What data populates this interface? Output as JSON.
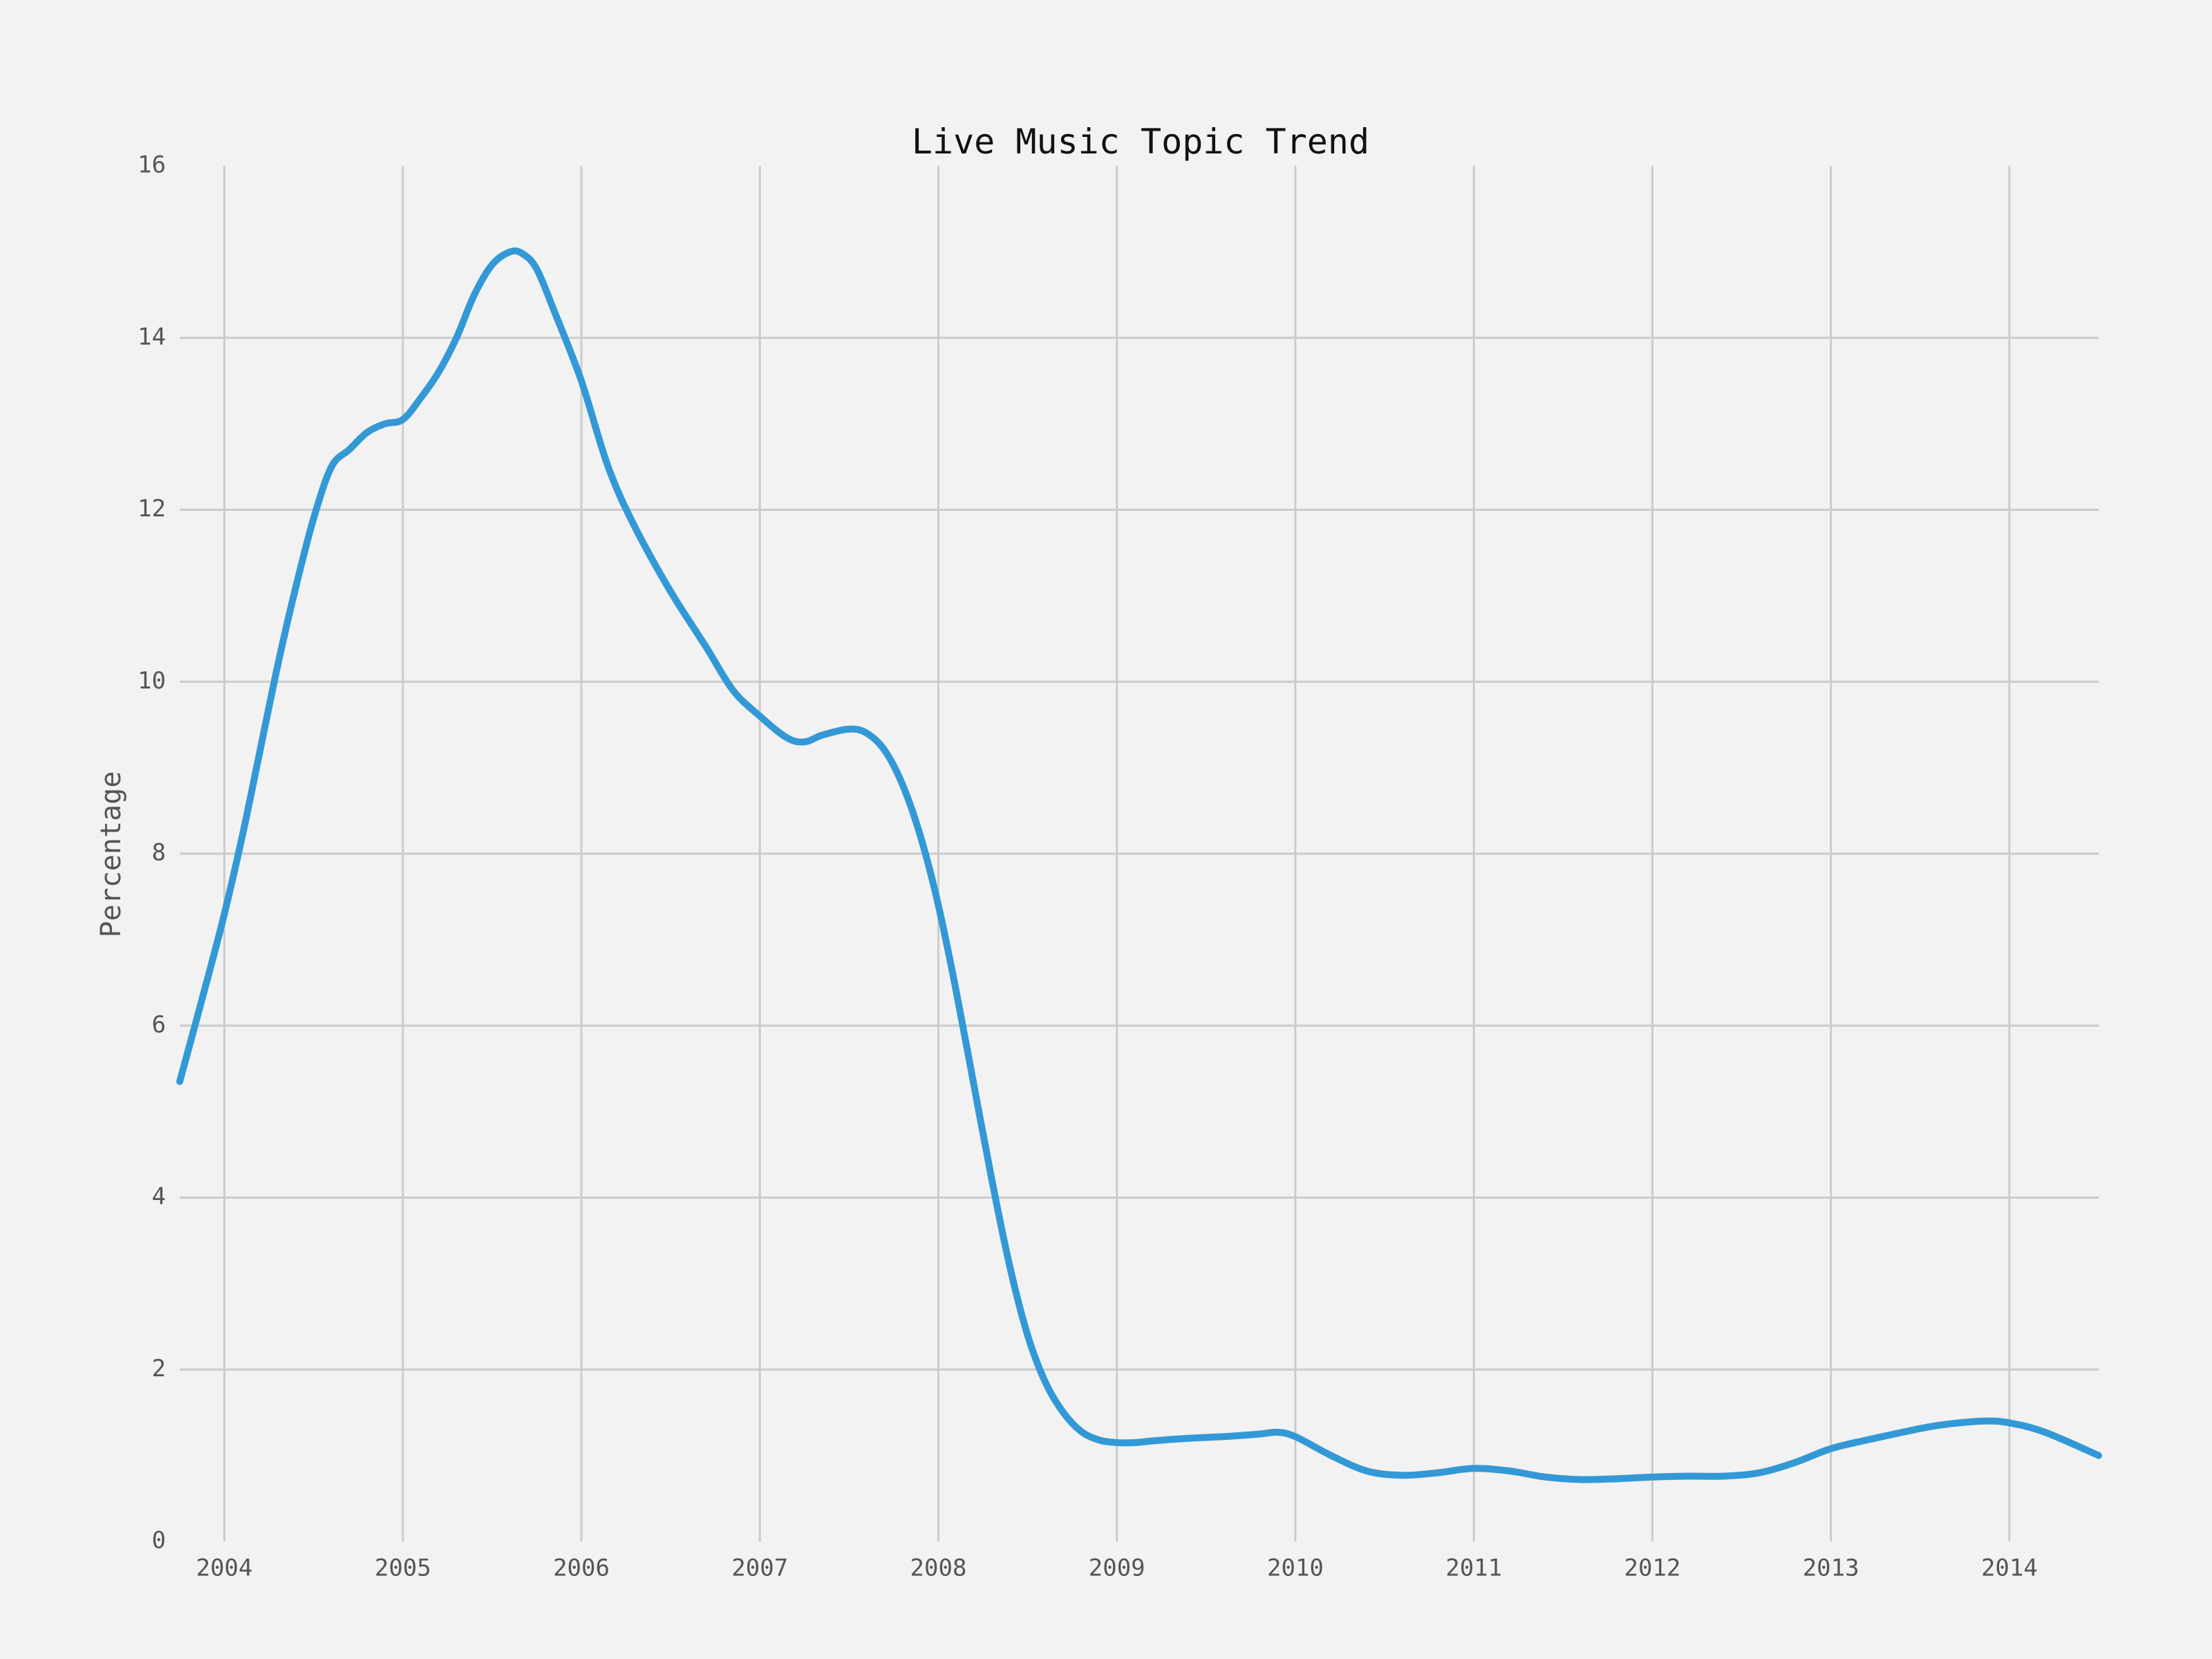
{
  "chart_data": {
    "type": "line",
    "title": "Live Music Topic Trend",
    "xlabel": "",
    "ylabel": "Percentage",
    "xlim": [
      2003.75,
      2014.5
    ],
    "ylim": [
      0,
      16
    ],
    "x_ticks": [
      "2004",
      "2005",
      "2006",
      "2007",
      "2008",
      "2009",
      "2010",
      "2011",
      "2012",
      "2013",
      "2014"
    ],
    "y_ticks": [
      "0",
      "2",
      "4",
      "6",
      "8",
      "10",
      "12",
      "14",
      "16"
    ],
    "grid": true,
    "legend": "none",
    "colors": {
      "line": "#3399d6",
      "grid": "#cbcbcb",
      "background": "#f2f2f2"
    },
    "series": [
      {
        "x": [
          2003.75,
          2003.9,
          2004.0,
          2004.1,
          2004.2,
          2004.3,
          2004.4,
          2004.5,
          2004.6,
          2004.7,
          2004.8,
          2004.9,
          2005.0,
          2005.1,
          2005.2,
          2005.3,
          2005.4,
          2005.5,
          2005.6,
          2005.67,
          2005.75,
          2005.85,
          2006.0,
          2006.15,
          2006.3,
          2006.5,
          2006.7,
          2006.85,
          2007.0,
          2007.15,
          2007.25,
          2007.35,
          2007.5,
          2007.6,
          2007.7,
          2007.8,
          2007.9,
          2008.0,
          2008.1,
          2008.2,
          2008.3,
          2008.4,
          2008.5,
          2008.6,
          2008.7,
          2008.8,
          2008.9,
          2009.0,
          2009.1,
          2009.2,
          2009.4,
          2009.6,
          2009.8,
          2009.9,
          2010.0,
          2010.2,
          2010.4,
          2010.6,
          2010.8,
          2011.0,
          2011.2,
          2011.4,
          2011.6,
          2011.8,
          2012.0,
          2012.2,
          2012.4,
          2012.6,
          2012.8,
          2013.0,
          2013.2,
          2013.4,
          2013.6,
          2013.85,
          2014.0,
          2014.2,
          2014.5
        ],
        "y": [
          5.35,
          6.5,
          7.3,
          8.2,
          9.2,
          10.2,
          11.1,
          11.9,
          12.5,
          12.7,
          12.9,
          13.0,
          13.05,
          13.3,
          13.6,
          14.0,
          14.5,
          14.85,
          15.0,
          14.98,
          14.8,
          14.3,
          13.5,
          12.5,
          11.8,
          11.05,
          10.4,
          9.9,
          9.6,
          9.35,
          9.3,
          9.38,
          9.45,
          9.4,
          9.2,
          8.8,
          8.2,
          7.4,
          6.4,
          5.3,
          4.2,
          3.2,
          2.4,
          1.85,
          1.5,
          1.28,
          1.18,
          1.15,
          1.15,
          1.17,
          1.2,
          1.22,
          1.25,
          1.27,
          1.22,
          1.0,
          0.82,
          0.77,
          0.8,
          0.85,
          0.82,
          0.75,
          0.72,
          0.73,
          0.75,
          0.76,
          0.76,
          0.8,
          0.92,
          1.08,
          1.18,
          1.27,
          1.35,
          1.4,
          1.38,
          1.27,
          1.0
        ]
      }
    ]
  }
}
